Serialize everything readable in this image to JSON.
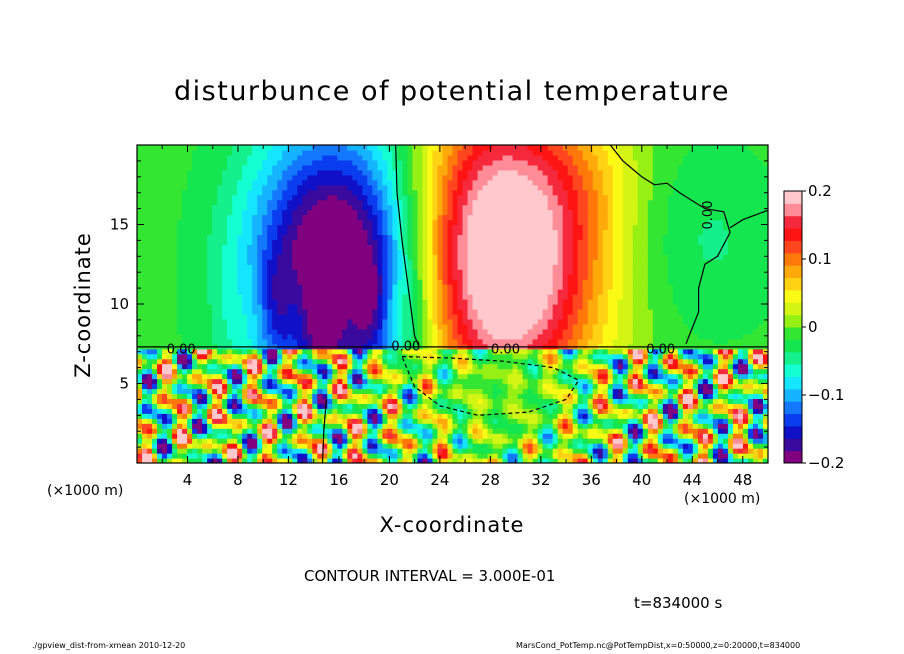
{
  "chart_data": {
    "type": "heatmap",
    "title": "disturbunce of potential temperature",
    "xlabel": "X-coordinate",
    "ylabel": "Z-coordinate",
    "x_unit_label": "(×1000 m)",
    "z_unit_label": "(×1000 m)",
    "xlim": [
      0,
      50
    ],
    "ylim": [
      0,
      20
    ],
    "x_ticks": [
      4,
      8,
      12,
      16,
      20,
      24,
      28,
      32,
      36,
      40,
      44,
      48
    ],
    "y_ticks": [
      5,
      10,
      15
    ],
    "colorbar": {
      "range": [
        -0.2,
        0.2
      ],
      "tick_values": [
        0.2,
        0.1,
        0,
        -0.1,
        -0.2
      ],
      "tick_labels": [
        "0.2",
        "0.1",
        "0",
        "−0.1",
        "−0.2"
      ],
      "colors": [
        "#800080",
        "#3a0a9e",
        "#1010c8",
        "#0a3cf0",
        "#1478ff",
        "#14b4ff",
        "#14e6ff",
        "#14ffd2",
        "#14f08c",
        "#14e650",
        "#32e632",
        "#96f014",
        "#d2f514",
        "#fafa14",
        "#ffd214",
        "#ffaa0a",
        "#ff780a",
        "#ff461e",
        "#ff1414",
        "#f5283c",
        "#ff8c96",
        "#ffc8cc"
      ]
    },
    "contour_labels": [
      "0.00",
      "0.00",
      "0.00",
      "0.00",
      "0.00"
    ],
    "contour_interval_text": "CONTOUR INTERVAL = 3.000E-01",
    "time_text": "t=834000 s",
    "footer_left": "./gpview_dist-from-xmean  2010-12-20",
    "footer_right": "MarsCond_PotTemp.nc@PotTempDist,x=0:50000,z=0:20000,t=834000"
  }
}
